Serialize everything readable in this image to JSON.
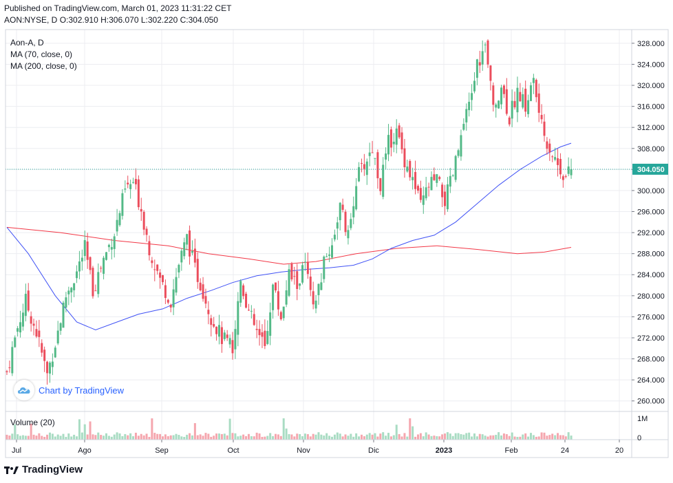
{
  "header": {
    "published": "Published on TradingView.com, March 01, 2023 11:31:22 CET",
    "symbol": "AON:NYSE, D",
    "o_label": "O:",
    "o": "302.910",
    "h_label": "H:",
    "h": "306.070",
    "l_label": "L:",
    "l": "302.220",
    "c_label": "C:",
    "c": "304.050"
  },
  "legend": {
    "title": "Aon-A, D",
    "ma70": "MA (70, close, 0)",
    "ma200": "MA (200, close, 0)"
  },
  "volume_label": "Volume (20)",
  "watermark": "Chart by TradingView",
  "brand": "TradingView",
  "colors": {
    "up": "#53b987",
    "down": "#eb4d5c",
    "up_vol": "#a9dcc3",
    "down_vol": "#f5a6ae",
    "ma70": "#3f51f5",
    "ma200": "#f23645",
    "last_price_bg": "#26a69a",
    "grid": "#ecedf1"
  },
  "chart_data": {
    "type": "candlestick",
    "last_price": "304.050",
    "y_ticks": [
      "328.000",
      "324.000",
      "320.000",
      "316.000",
      "312.000",
      "308.000",
      "304.000",
      "300.000",
      "296.000",
      "292.000",
      "288.000",
      "284.000",
      "280.000",
      "276.000",
      "272.000",
      "268.000",
      "264.000",
      "260.000"
    ],
    "ylim": [
      258.0,
      330.6
    ],
    "x_labels": [
      "Jul",
      "Ago",
      "Sep",
      "Oct",
      "Nov",
      "Dic",
      "2023",
      "Feb",
      "24",
      "20"
    ],
    "volume_ticks": [
      "1M",
      "0"
    ],
    "ohlc_anchors": [
      {
        "d": 0,
        "c": 265.5
      },
      {
        "d": 4,
        "c": 274.0
      },
      {
        "d": 7,
        "c": 279.0
      },
      {
        "d": 11,
        "c": 273.0
      },
      {
        "d": 15,
        "c": 265.0
      },
      {
        "d": 18,
        "c": 271.0
      },
      {
        "d": 22,
        "c": 280.0
      },
      {
        "d": 26,
        "c": 284.5
      },
      {
        "d": 29,
        "c": 289.0
      },
      {
        "d": 32,
        "c": 281.0
      },
      {
        "d": 36,
        "c": 287.0
      },
      {
        "d": 40,
        "c": 292.0
      },
      {
        "d": 44,
        "c": 300.0
      },
      {
        "d": 47,
        "c": 301.5
      },
      {
        "d": 50,
        "c": 296.5
      },
      {
        "d": 53,
        "c": 289.0
      },
      {
        "d": 57,
        "c": 283.0
      },
      {
        "d": 61,
        "c": 279.0
      },
      {
        "d": 64,
        "c": 286.0
      },
      {
        "d": 67,
        "c": 291.0
      },
      {
        "d": 70,
        "c": 285.0
      },
      {
        "d": 73,
        "c": 281.0
      },
      {
        "d": 76,
        "c": 276.0
      },
      {
        "d": 80,
        "c": 272.0
      },
      {
        "d": 84,
        "c": 270.0
      },
      {
        "d": 87,
        "c": 283.0
      },
      {
        "d": 90,
        "c": 277.0
      },
      {
        "d": 93,
        "c": 273.0
      },
      {
        "d": 96,
        "c": 270.0
      },
      {
        "d": 99,
        "c": 282.0
      },
      {
        "d": 102,
        "c": 276.0
      },
      {
        "d": 105,
        "c": 284.0
      },
      {
        "d": 108,
        "c": 282.0
      },
      {
        "d": 111,
        "c": 286.0
      },
      {
        "d": 114,
        "c": 277.0
      },
      {
        "d": 118,
        "c": 286.0
      },
      {
        "d": 121,
        "c": 290.0
      },
      {
        "d": 124,
        "c": 297.0
      },
      {
        "d": 127,
        "c": 291.0
      },
      {
        "d": 130,
        "c": 302.0
      },
      {
        "d": 133,
        "c": 305.0
      },
      {
        "d": 136,
        "c": 308.0
      },
      {
        "d": 139,
        "c": 301.0
      },
      {
        "d": 142,
        "c": 309.0
      },
      {
        "d": 145,
        "c": 311.0
      },
      {
        "d": 148,
        "c": 306.0
      },
      {
        "d": 151,
        "c": 302.0
      },
      {
        "d": 154,
        "c": 297.0
      },
      {
        "d": 157,
        "c": 301.0
      },
      {
        "d": 160,
        "c": 302.0
      },
      {
        "d": 163,
        "c": 298.0
      },
      {
        "d": 166,
        "c": 303.0
      },
      {
        "d": 169,
        "c": 310.0
      },
      {
        "d": 172,
        "c": 316.0
      },
      {
        "d": 175,
        "c": 324.0
      },
      {
        "d": 178,
        "c": 327.0
      },
      {
        "d": 181,
        "c": 316.0
      },
      {
        "d": 184,
        "c": 320.0
      },
      {
        "d": 187,
        "c": 314.0
      },
      {
        "d": 190,
        "c": 319.0
      },
      {
        "d": 193,
        "c": 316.0
      },
      {
        "d": 196,
        "c": 321.0
      },
      {
        "d": 199,
        "c": 312.0
      },
      {
        "d": 202,
        "c": 308.0
      },
      {
        "d": 205,
        "c": 305.0
      },
      {
        "d": 208,
        "c": 302.5
      },
      {
        "d": 210,
        "c": 304.05
      }
    ],
    "ma70": [
      {
        "d": 0,
        "v": 293.0
      },
      {
        "d": 8,
        "v": 288.0
      },
      {
        "d": 18,
        "v": 280.0
      },
      {
        "d": 26,
        "v": 275.0
      },
      {
        "d": 33,
        "v": 273.5
      },
      {
        "d": 41,
        "v": 275.0
      },
      {
        "d": 49,
        "v": 276.5
      },
      {
        "d": 58,
        "v": 277.5
      },
      {
        "d": 67,
        "v": 279.5
      },
      {
        "d": 76,
        "v": 281.0
      },
      {
        "d": 84,
        "v": 282.5
      },
      {
        "d": 93,
        "v": 283.8
      },
      {
        "d": 102,
        "v": 284.5
      },
      {
        "d": 111,
        "v": 285.0
      },
      {
        "d": 120,
        "v": 285.3
      },
      {
        "d": 129,
        "v": 285.8
      },
      {
        "d": 136,
        "v": 287.0
      },
      {
        "d": 143,
        "v": 289.0
      },
      {
        "d": 151,
        "v": 290.5
      },
      {
        "d": 159,
        "v": 291.5
      },
      {
        "d": 167,
        "v": 294.0
      },
      {
        "d": 175,
        "v": 297.5
      },
      {
        "d": 183,
        "v": 301.0
      },
      {
        "d": 191,
        "v": 304.0
      },
      {
        "d": 199,
        "v": 306.5
      },
      {
        "d": 206,
        "v": 308.3
      },
      {
        "d": 210,
        "v": 309.0
      }
    ],
    "ma200": [
      {
        "d": 0,
        "v": 293.0
      },
      {
        "d": 20,
        "v": 292.0
      },
      {
        "d": 40,
        "v": 290.5
      },
      {
        "d": 60,
        "v": 289.5
      },
      {
        "d": 75,
        "v": 288.0
      },
      {
        "d": 90,
        "v": 287.0
      },
      {
        "d": 103,
        "v": 286.0
      },
      {
        "d": 115,
        "v": 286.5
      },
      {
        "d": 130,
        "v": 288.0
      },
      {
        "d": 145,
        "v": 289.0
      },
      {
        "d": 160,
        "v": 289.5
      },
      {
        "d": 175,
        "v": 288.8
      },
      {
        "d": 190,
        "v": 288.0
      },
      {
        "d": 200,
        "v": 288.3
      },
      {
        "d": 210,
        "v": 289.2
      }
    ]
  }
}
